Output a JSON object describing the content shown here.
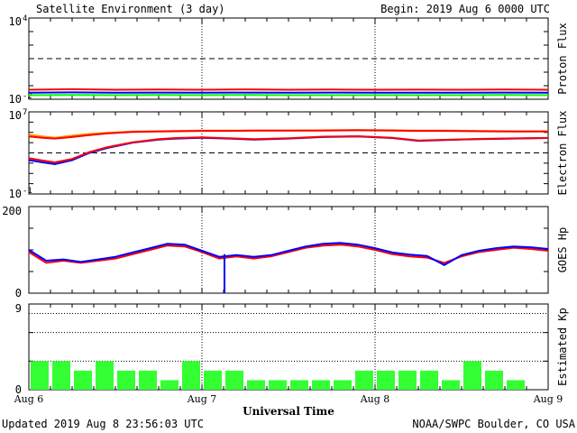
{
  "header": {
    "title": "Satellite Environment (3 day)",
    "begin": "Begin:  2019 Aug 6 0000 UTC"
  },
  "footer": {
    "updated": "Updated 2019 Aug  8 23:56:03 UTC",
    "credit": "NOAA/SWPC Boulder, CO USA"
  },
  "xaxis": {
    "label": "Universal Time",
    "ticks": [
      "Aug 6",
      "Aug 7",
      "Aug 8",
      "Aug 9"
    ],
    "range_days": [
      0,
      3
    ]
  },
  "colors": {
    "red": "#ff0000",
    "blue": "#0000ff",
    "green": "#00ff00",
    "orange": "#ff9900",
    "kp_bar": "#33ff33",
    "axis": "#000000"
  },
  "chart_data": [
    {
      "type": "line",
      "name": "proton-flux",
      "ylabel": "Proton Flux",
      "scale": "log",
      "ylim": [
        0.01,
        10000
      ],
      "ytick_labels": [
        {
          "base": "10",
          "exp": "4"
        },
        {
          "base": "10",
          "exp": "-2"
        }
      ],
      "threshold": 10,
      "x_days": [
        0,
        0.25,
        0.5,
        0.75,
        1,
        1.25,
        1.5,
        1.75,
        2,
        2.25,
        2.5,
        2.75,
        3
      ],
      "series": [
        {
          "color": "red",
          "values": [
            0.05,
            0.055,
            0.05,
            0.052,
            0.05,
            0.053,
            0.05,
            0.052,
            0.05,
            0.051,
            0.05,
            0.052,
            0.05
          ]
        },
        {
          "color": "blue",
          "values": [
            0.03,
            0.032,
            0.03,
            0.031,
            0.03,
            0.031,
            0.03,
            0.031,
            0.03,
            0.03,
            0.03,
            0.031,
            0.03
          ]
        },
        {
          "color": "green",
          "values": [
            0.02,
            0.021,
            0.02,
            0.021,
            0.02,
            0.021,
            0.02,
            0.02,
            0.02,
            0.02,
            0.02,
            0.021,
            0.02
          ]
        }
      ]
    },
    {
      "type": "line",
      "name": "electron-flux",
      "ylabel": "Electron Flux",
      "scale": "log",
      "ylim": [
        0.1,
        10000000
      ],
      "ytick_labels": [
        {
          "base": "10",
          "exp": "7"
        },
        {
          "base": "10",
          "exp": "-1"
        }
      ],
      "threshold": 1000,
      "x_days": [
        0,
        0.08,
        0.15,
        0.25,
        0.35,
        0.45,
        0.6,
        0.75,
        0.85,
        1,
        1.15,
        1.3,
        1.5,
        1.7,
        1.9,
        2.1,
        2.25,
        2.4,
        2.6,
        2.8,
        3
      ],
      "series": [
        {
          "color": "orange",
          "values": [
            60000,
            40000,
            30000,
            50000,
            70000,
            90000,
            120000,
            130000,
            140000,
            150000,
            150000,
            150000,
            150000,
            160000,
            170000,
            160000,
            150000,
            150000,
            140000,
            130000,
            130000
          ]
        },
        {
          "color": "red",
          "values": [
            40000,
            30000,
            25000,
            35000,
            55000,
            80000,
            110000,
            120000,
            130000,
            140000,
            140000,
            150000,
            150000,
            150000,
            160000,
            150000,
            140000,
            140000,
            130000,
            120000,
            120000
          ]
        },
        {
          "color": "blue",
          "values": [
            200,
            120,
            80,
            200,
            1000,
            3000,
            10000,
            20000,
            25000,
            30000,
            25000,
            20000,
            25000,
            35000,
            40000,
            28000,
            15000,
            18000,
            22000,
            25000,
            28000
          ]
        },
        {
          "color": "red",
          "values": [
            300,
            180,
            120,
            260,
            1200,
            3500,
            11000,
            22000,
            28000,
            33000,
            27000,
            22000,
            27000,
            38000,
            42000,
            30000,
            16000,
            19000,
            23000,
            26000,
            29000
          ]
        }
      ]
    },
    {
      "type": "line",
      "name": "goes-hp",
      "ylabel": "GOES Hp",
      "scale": "linear",
      "ylim": [
        0,
        200
      ],
      "ytick_labels": [
        "200",
        "0"
      ],
      "x_days": [
        0,
        0.1,
        0.2,
        0.3,
        0.4,
        0.5,
        0.6,
        0.7,
        0.8,
        0.9,
        1.0,
        1.1,
        1.2,
        1.3,
        1.4,
        1.5,
        1.6,
        1.7,
        1.8,
        1.9,
        2.0,
        2.1,
        2.2,
        2.3,
        2.4,
        2.5,
        2.6,
        2.7,
        2.8,
        2.9,
        3.0
      ],
      "series": [
        {
          "color": "red",
          "values": [
            95,
            70,
            75,
            70,
            75,
            80,
            90,
            100,
            110,
            108,
            95,
            80,
            85,
            80,
            85,
            95,
            105,
            110,
            112,
            108,
            100,
            90,
            85,
            82,
            70,
            85,
            95,
            100,
            105,
            102,
            98
          ]
        },
        {
          "color": "blue",
          "values": [
            100,
            75,
            78,
            72,
            78,
            84,
            94,
            104,
            114,
            112,
            98,
            84,
            88,
            84,
            88,
            98,
            108,
            114,
            116,
            112,
            104,
            94,
            89,
            86,
            65,
            88,
            98,
            104,
            108,
            106,
            102
          ]
        }
      ],
      "dropout": {
        "x_day": 1.13,
        "color": "blue",
        "value": 0
      }
    },
    {
      "type": "bar",
      "name": "estimated-kp",
      "ylabel": "Estimated Kp",
      "ylim": [
        0,
        9
      ],
      "ytick_labels": [
        "9",
        "0"
      ],
      "bar_width_hours": 3,
      "values": [
        3,
        3,
        2,
        3,
        2,
        2,
        1,
        3,
        2,
        2,
        1,
        1,
        1,
        1,
        1,
        2,
        2,
        2,
        2,
        1,
        3,
        2,
        1,
        0
      ]
    }
  ]
}
